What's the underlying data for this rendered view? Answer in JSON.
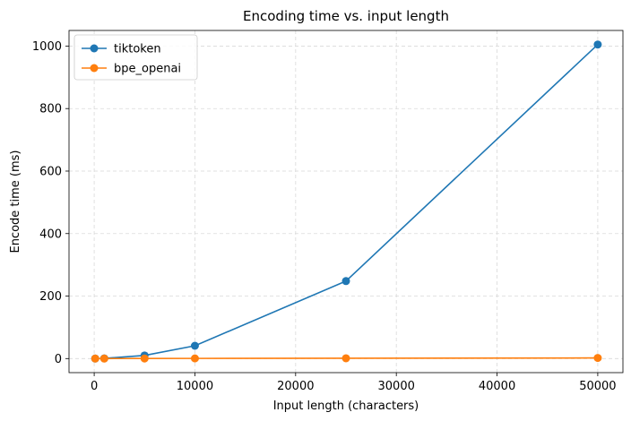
{
  "chart_data": {
    "type": "line",
    "title": "Encoding time vs. input length",
    "xlabel": "Input length (characters)",
    "ylabel": "Encode time (ms)",
    "xlim": [
      -2500,
      52500
    ],
    "ylim": [
      -45,
      1050
    ],
    "xticks": [
      0,
      10000,
      20000,
      30000,
      40000,
      50000
    ],
    "xtick_labels": [
      "0",
      "10000",
      "20000",
      "30000",
      "40000",
      "50000"
    ],
    "yticks": [
      0,
      200,
      400,
      600,
      800,
      1000
    ],
    "ytick_labels": [
      "0",
      "200",
      "400",
      "600",
      "800",
      "1000"
    ],
    "grid": true,
    "legend_position": "top-left",
    "series": [
      {
        "name": "tiktoken",
        "color": "#1f77b4",
        "x": [
          100,
          1000,
          5000,
          10000,
          25000,
          50000
        ],
        "y": [
          0.1,
          0.6,
          10,
          41,
          248,
          1005
        ]
      },
      {
        "name": "bpe_openai",
        "color": "#ff7f0e",
        "x": [
          100,
          1000,
          5000,
          10000,
          25000,
          50000
        ],
        "y": [
          0.0,
          0.1,
          0.3,
          0.5,
          1.0,
          2.0
        ]
      }
    ]
  }
}
